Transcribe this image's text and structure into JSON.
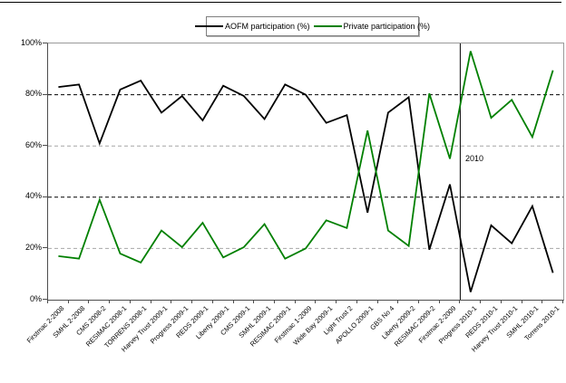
{
  "legend": {
    "position": "top-center"
  },
  "y_axis": {
    "ticks": [
      "0%",
      "20%",
      "40%",
      "60%",
      "80%",
      "100%"
    ]
  },
  "chart_data": {
    "type": "line",
    "title": "",
    "xlabel": "",
    "ylabel": "",
    "ylim": [
      0,
      100
    ],
    "y_ticks": [
      "0%",
      "20%",
      "40%",
      "60%",
      "80%",
      "100%"
    ],
    "grid": "horizontal dashed at 20/40/60/80",
    "legend_position": "top-center",
    "categories": [
      "Firstmac 2-2008",
      "SMHL 2-2008",
      "CMS 2008-2",
      "RESIMAC 2008-1",
      "TORRENS 2008-1",
      "Harvey Trust 2009-1",
      "Progress 2009-1",
      "REDS 2009-1",
      "Liberty 2009-1",
      "CMS 2009-1",
      "SMHL 2009-1",
      "RESIMAC 2009-1",
      "Firstmac 1-2009",
      "Wide Bay 2009-1",
      "Light Trust 2",
      "APOLLO 2009-1",
      "GBS No 4",
      "Liberty 2009-2",
      "RESIMAC 2009-2",
      "Firstmac 2-2009",
      "Progress 2010-1",
      "REDS 2010-1",
      "Harvey Trust 2010-1",
      "SMHL 2010-1",
      "Torrens 2010-1"
    ],
    "series": [
      {
        "name": "AOFM participation (%)",
        "color": "#000000",
        "values": [
          83,
          84,
          61,
          82,
          85.5,
          73,
          79.5,
          70,
          83.5,
          79.5,
          70.5,
          84,
          80,
          69,
          72,
          34,
          73,
          79,
          19.5,
          45,
          3,
          29,
          22,
          36.5,
          10.5
        ]
      },
      {
        "name": "Private participation (%)",
        "color": "#008000",
        "values": [
          17,
          16,
          39,
          18,
          14.5,
          27,
          20.5,
          30,
          16.5,
          20.5,
          29.5,
          16,
          20,
          31,
          28,
          66,
          27,
          21,
          80.5,
          55,
          97,
          71,
          78,
          63.5,
          89.5
        ]
      }
    ],
    "gridlines": [
      {
        "percent": 20,
        "color": "#a6a6a6"
      },
      {
        "percent": 40,
        "color": "#000000"
      },
      {
        "percent": 60,
        "color": "#a6a6a6"
      },
      {
        "percent": 80,
        "color": "#000000"
      }
    ],
    "annotations": [
      {
        "text": "2010",
        "between_categories": [
          19,
          20
        ],
        "divider_color": "#000000"
      }
    ]
  }
}
